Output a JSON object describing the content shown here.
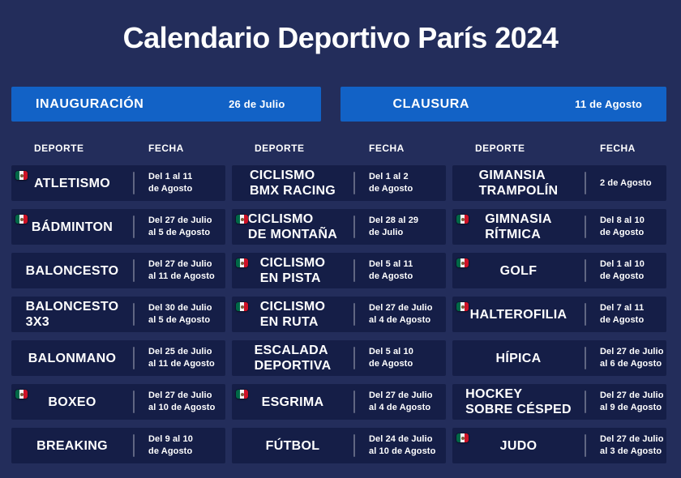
{
  "title": "Calendario Deportivo París 2024",
  "banners": {
    "inauguracion": {
      "label": "INAUGURACIÓN",
      "date": "26 de Julio"
    },
    "clausura": {
      "label": "CLAUSURA",
      "date": "11 de Agosto"
    }
  },
  "column_headers": {
    "sport": "DEPORTE",
    "date": "FECHA"
  },
  "icons": {
    "flag": "mexico-flag-icon"
  },
  "colors": {
    "background": "#232d5b",
    "row_background": "#151e47",
    "banner_blue": "#1262c6",
    "text": "#ffffff",
    "flag_green": "#006847",
    "flag_red": "#ce1126"
  },
  "columns": [
    {
      "rows": [
        {
          "sport": [
            "ATLETISMO"
          ],
          "date": [
            "Del 1 al 11",
            "de Agosto"
          ],
          "flag": true
        },
        {
          "sport": [
            "BÁDMINTON"
          ],
          "date": [
            "Del 27 de Julio",
            "al 5 de Agosto"
          ],
          "flag": true
        },
        {
          "sport": [
            "BALONCESTO"
          ],
          "date": [
            "Del 27 de Julio",
            "al 11 de Agosto"
          ],
          "flag": false
        },
        {
          "sport": [
            "BALONCESTO",
            "3X3"
          ],
          "date": [
            "Del 30 de Julio",
            "al 5 de Agosto"
          ],
          "flag": false
        },
        {
          "sport": [
            "BALONMANO"
          ],
          "date": [
            "Del 25 de Julio",
            "al 11 de Agosto"
          ],
          "flag": false
        },
        {
          "sport": [
            "BOXEO"
          ],
          "date": [
            "Del 27 de Julio",
            "al 10 de Agosto"
          ],
          "flag": true
        },
        {
          "sport": [
            "BREAKING"
          ],
          "date": [
            "Del 9 al 10",
            "de Agosto"
          ],
          "flag": false
        }
      ]
    },
    {
      "rows": [
        {
          "sport": [
            "CICLISMO",
            "BMX RACING"
          ],
          "date": [
            "Del 1 al 2",
            "de Agosto"
          ],
          "flag": false
        },
        {
          "sport": [
            "CICLISMO",
            "DE MONTAÑA"
          ],
          "date": [
            "Del 28 al 29",
            "de Julio"
          ],
          "flag": true
        },
        {
          "sport": [
            "CICLISMO",
            "EN PISTA"
          ],
          "date": [
            "Del 5 al 11",
            "de Agosto"
          ],
          "flag": true
        },
        {
          "sport": [
            "CICLISMO",
            "EN RUTA"
          ],
          "date": [
            "Del 27 de Julio",
            "al 4 de Agosto"
          ],
          "flag": true
        },
        {
          "sport": [
            "ESCALADA",
            "DEPORTIVA"
          ],
          "date": [
            "Del 5 al 10",
            "de Agosto"
          ],
          "flag": false
        },
        {
          "sport": [
            "ESGRIMA"
          ],
          "date": [
            "Del 27 de Julio",
            "al 4 de Agosto"
          ],
          "flag": true
        },
        {
          "sport": [
            "FÚTBOL"
          ],
          "date": [
            "Del 24 de Julio",
            "al 10 de Agosto"
          ],
          "flag": false
        }
      ]
    },
    {
      "rows": [
        {
          "sport": [
            "GIMANSIA",
            "TRAMPOLÍN"
          ],
          "date": [
            "2 de Agosto"
          ],
          "flag": false
        },
        {
          "sport": [
            "GIMNASIA",
            "RÍTMICA"
          ],
          "date": [
            "Del 8 al 10",
            "de Agosto"
          ],
          "flag": true
        },
        {
          "sport": [
            "GOLF"
          ],
          "date": [
            "Del 1 al 10",
            "de Agosto"
          ],
          "flag": true
        },
        {
          "sport": [
            "HALTEROFILIA"
          ],
          "date": [
            "Del 7 al 11",
            "de Agosto"
          ],
          "flag": true
        },
        {
          "sport": [
            "HÍPICA"
          ],
          "date": [
            "Del 27 de Julio",
            "al 6 de Agosto"
          ],
          "flag": false
        },
        {
          "sport": [
            "HOCKEY",
            "SOBRE CÉSPED"
          ],
          "date": [
            "Del 27 de Julio",
            "al 9 de Agosto"
          ],
          "flag": false
        },
        {
          "sport": [
            "JUDO"
          ],
          "date": [
            "Del 27 de Julio",
            "al 3 de Agosto"
          ],
          "flag": true
        }
      ]
    }
  ]
}
